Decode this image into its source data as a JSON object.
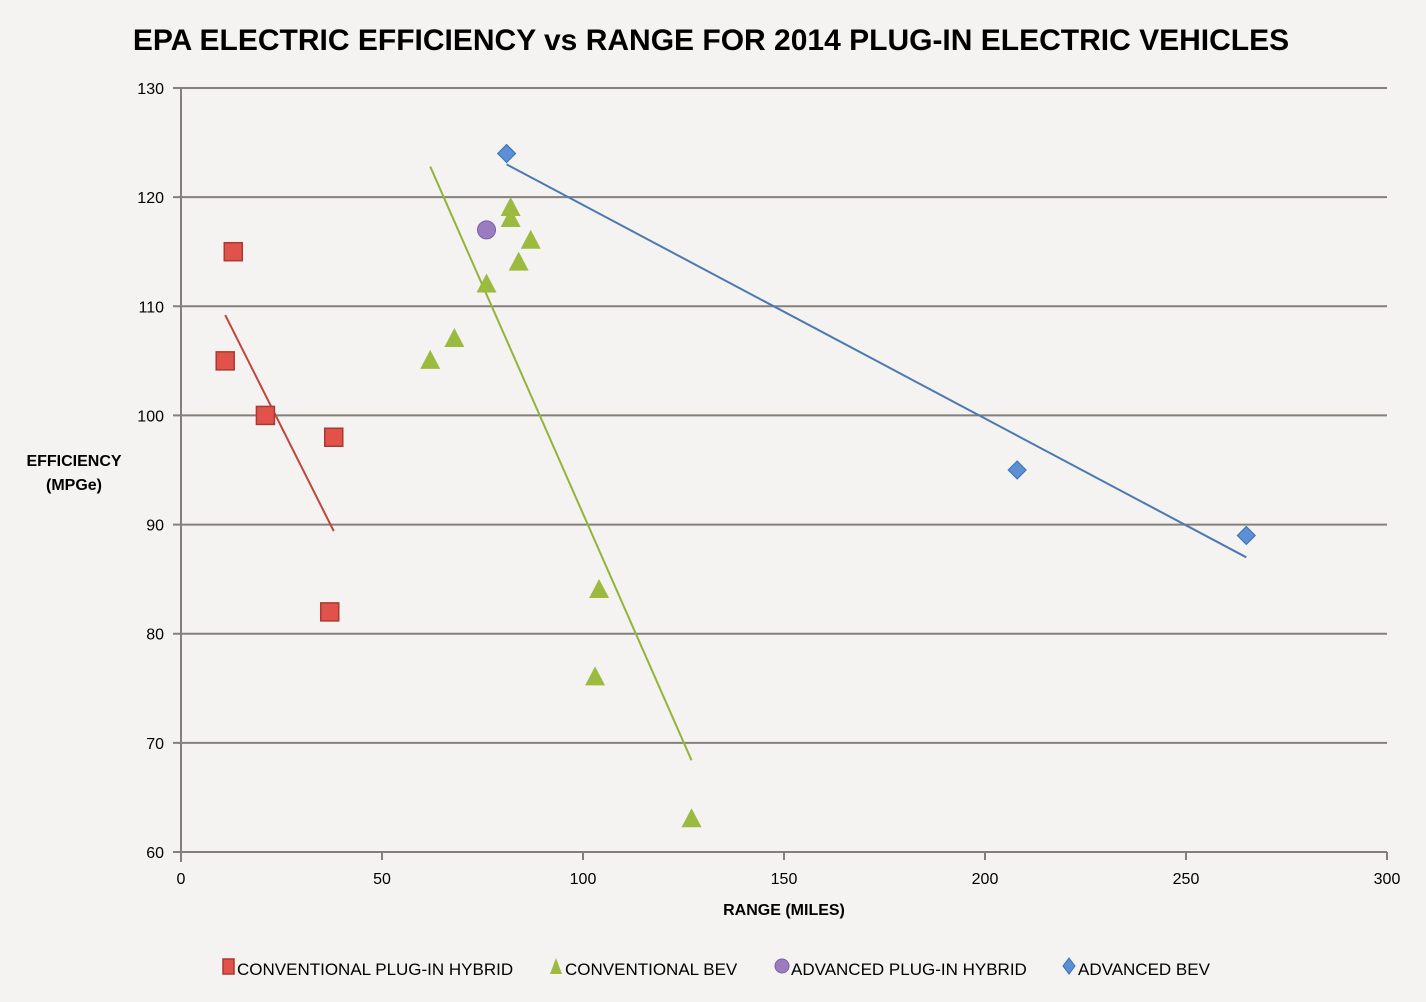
{
  "chart_data": {
    "type": "scatter",
    "title": "EPA ELECTRIC EFFICIENCY vs RANGE FOR 2014 PLUG-IN ELECTRIC VEHICLES",
    "xlabel": "RANGE (MILES)",
    "ylabel": [
      "EFFICIENCY",
      "(MPGe)"
    ],
    "xlim": [
      0,
      300
    ],
    "ylim": [
      60,
      130
    ],
    "xticks": [
      0,
      50,
      100,
      150,
      200,
      250,
      300
    ],
    "yticks": [
      60,
      70,
      80,
      90,
      100,
      110,
      120,
      130
    ],
    "grid": true,
    "legend_position": "bottom",
    "series": [
      {
        "name": "CONVENTIONAL PLUG-IN HYBRID",
        "marker": "square",
        "color": "#e0524a",
        "points": [
          [
            13,
            115
          ],
          [
            11,
            105
          ],
          [
            21,
            100
          ],
          [
            38,
            98
          ],
          [
            37,
            82
          ]
        ],
        "trend": [
          [
            11,
            109.2
          ],
          [
            38,
            89.4
          ]
        ]
      },
      {
        "name": "CONVENTIONAL BEV",
        "marker": "triangle",
        "color": "#9bbb40",
        "points": [
          [
            62,
            105
          ],
          [
            68,
            107
          ],
          [
            76,
            112
          ],
          [
            82,
            119
          ],
          [
            82,
            118
          ],
          [
            84,
            114
          ],
          [
            87,
            116
          ],
          [
            104,
            84
          ],
          [
            103,
            76
          ],
          [
            127,
            63
          ]
        ],
        "trend": [
          [
            62,
            122.8
          ],
          [
            127,
            68.4
          ]
        ]
      },
      {
        "name": "ADVANCED PLUG-IN HYBRID",
        "marker": "circle",
        "color": "#9b7cc0",
        "points": [
          [
            76,
            117
          ]
        ],
        "trend": null
      },
      {
        "name": "ADVANCED BEV",
        "marker": "diamond",
        "color": "#5b8fd6",
        "points": [
          [
            81,
            124
          ],
          [
            208,
            95
          ],
          [
            265,
            89
          ]
        ],
        "trend": [
          [
            81,
            123
          ],
          [
            265,
            87
          ]
        ]
      }
    ]
  }
}
